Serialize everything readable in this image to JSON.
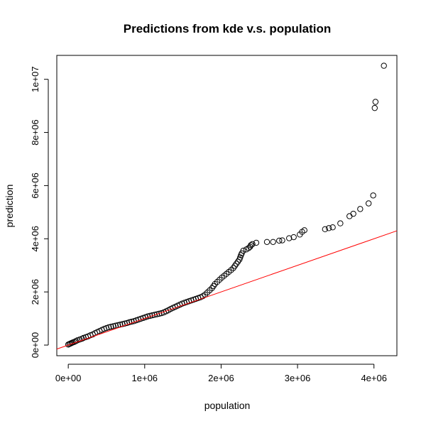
{
  "chart_data": {
    "type": "scatter",
    "title": "Predictions from kde v.s. population",
    "xlabel": "population",
    "ylabel": "prediction",
    "xlim": [
      -150000,
      4300000
    ],
    "ylim": [
      -400000,
      10900000
    ],
    "x_ticks": [
      0,
      1000000,
      2000000,
      3000000,
      4000000
    ],
    "x_tick_labels": [
      "0e+00",
      "1e+06",
      "2e+06",
      "3e+06",
      "4e+06"
    ],
    "y_ticks": [
      0,
      2000000,
      4000000,
      6000000,
      8000000,
      10000000
    ],
    "y_tick_labels": [
      "0e+00",
      "2e+06",
      "4e+06",
      "6e+06",
      "8e+06",
      "1e+07"
    ],
    "grid": false,
    "reference_line": {
      "intercept": 0,
      "slope": 1,
      "color": "#ff0000"
    },
    "point_color": "#000000",
    "points": [
      [
        0,
        20000
      ],
      [
        15000,
        40000
      ],
      [
        30000,
        60000
      ],
      [
        45000,
        80000
      ],
      [
        60000,
        100000
      ],
      [
        80000,
        120000
      ],
      [
        100000,
        150000
      ],
      [
        120000,
        180000
      ],
      [
        150000,
        210000
      ],
      [
        180000,
        240000
      ],
      [
        200000,
        270000
      ],
      [
        230000,
        300000
      ],
      [
        260000,
        330000
      ],
      [
        290000,
        370000
      ],
      [
        320000,
        400000
      ],
      [
        350000,
        450000
      ],
      [
        380000,
        490000
      ],
      [
        410000,
        530000
      ],
      [
        440000,
        570000
      ],
      [
        470000,
        610000
      ],
      [
        500000,
        640000
      ],
      [
        530000,
        670000
      ],
      [
        560000,
        690000
      ],
      [
        590000,
        710000
      ],
      [
        620000,
        730000
      ],
      [
        650000,
        750000
      ],
      [
        680000,
        770000
      ],
      [
        710000,
        790000
      ],
      [
        740000,
        810000
      ],
      [
        770000,
        830000
      ],
      [
        800000,
        860000
      ],
      [
        830000,
        880000
      ],
      [
        860000,
        900000
      ],
      [
        890000,
        930000
      ],
      [
        920000,
        960000
      ],
      [
        950000,
        990000
      ],
      [
        980000,
        1020000
      ],
      [
        1010000,
        1050000
      ],
      [
        1040000,
        1080000
      ],
      [
        1070000,
        1100000
      ],
      [
        1100000,
        1120000
      ],
      [
        1130000,
        1140000
      ],
      [
        1160000,
        1160000
      ],
      [
        1190000,
        1180000
      ],
      [
        1220000,
        1200000
      ],
      [
        1250000,
        1230000
      ],
      [
        1280000,
        1270000
      ],
      [
        1310000,
        1310000
      ],
      [
        1340000,
        1360000
      ],
      [
        1370000,
        1400000
      ],
      [
        1400000,
        1440000
      ],
      [
        1430000,
        1480000
      ],
      [
        1460000,
        1520000
      ],
      [
        1490000,
        1560000
      ],
      [
        1520000,
        1590000
      ],
      [
        1550000,
        1620000
      ],
      [
        1580000,
        1650000
      ],
      [
        1610000,
        1680000
      ],
      [
        1640000,
        1710000
      ],
      [
        1670000,
        1740000
      ],
      [
        1700000,
        1770000
      ],
      [
        1730000,
        1800000
      ],
      [
        1760000,
        1840000
      ],
      [
        1790000,
        1900000
      ],
      [
        1820000,
        1980000
      ],
      [
        1850000,
        2060000
      ],
      [
        1880000,
        2140000
      ],
      [
        1900000,
        2220000
      ],
      [
        1920000,
        2300000
      ],
      [
        1950000,
        2380000
      ],
      [
        1980000,
        2460000
      ],
      [
        2010000,
        2540000
      ],
      [
        2040000,
        2610000
      ],
      [
        2070000,
        2680000
      ],
      [
        2100000,
        2750000
      ],
      [
        2130000,
        2820000
      ],
      [
        2160000,
        2900000
      ],
      [
        2180000,
        2980000
      ],
      [
        2200000,
        3060000
      ],
      [
        2220000,
        3140000
      ],
      [
        2240000,
        3220000
      ],
      [
        2250000,
        3300000
      ],
      [
        2260000,
        3380000
      ],
      [
        2270000,
        3450000
      ],
      [
        2290000,
        3550000
      ],
      [
        2330000,
        3600000
      ],
      [
        2360000,
        3650000
      ],
      [
        2380000,
        3700000
      ],
      [
        2390000,
        3760000
      ],
      [
        2410000,
        3800000
      ],
      [
        2460000,
        3850000
      ],
      [
        2600000,
        3880000
      ],
      [
        2680000,
        3880000
      ],
      [
        2760000,
        3930000
      ],
      [
        2800000,
        3940000
      ],
      [
        2890000,
        4020000
      ],
      [
        2950000,
        4060000
      ],
      [
        3030000,
        4160000
      ],
      [
        3060000,
        4260000
      ],
      [
        3090000,
        4320000
      ],
      [
        3360000,
        4360000
      ],
      [
        3410000,
        4400000
      ],
      [
        3460000,
        4430000
      ],
      [
        3560000,
        4580000
      ],
      [
        3680000,
        4850000
      ],
      [
        3730000,
        4940000
      ],
      [
        3820000,
        5120000
      ],
      [
        3930000,
        5330000
      ],
      [
        3990000,
        5630000
      ],
      [
        4010000,
        8920000
      ],
      [
        4020000,
        9150000
      ],
      [
        4130000,
        10510000
      ]
    ]
  }
}
